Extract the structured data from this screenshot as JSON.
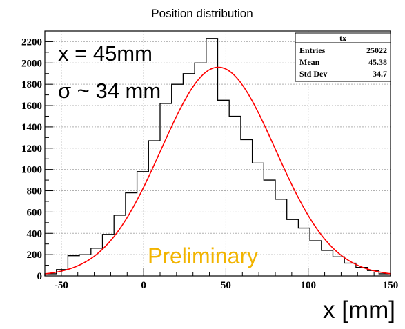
{
  "chart_data": {
    "type": "bar",
    "title": "Position distribution",
    "xlabel": "x [mm]",
    "ylabel": "",
    "xlim": [
      -60,
      150
    ],
    "ylim": [
      0,
      2300
    ],
    "x_ticks": [
      -50,
      0,
      50,
      100,
      150
    ],
    "y_ticks": [
      0,
      200,
      400,
      600,
      800,
      1000,
      1200,
      1400,
      1600,
      1800,
      2000,
      2200
    ],
    "grid": true,
    "bin_edges": [
      -60,
      -53,
      -46,
      -39,
      -32,
      -25,
      -18,
      -11,
      -4,
      3,
      10,
      17,
      24,
      31,
      38,
      45,
      52,
      59,
      66,
      73,
      80,
      87,
      94,
      101,
      108,
      115,
      122,
      129,
      136,
      143,
      150
    ],
    "values": [
      20,
      60,
      190,
      200,
      260,
      390,
      570,
      780,
      980,
      1270,
      1620,
      1800,
      1900,
      2000,
      2230,
      1650,
      1500,
      1280,
      1060,
      900,
      720,
      530,
      450,
      330,
      240,
      180,
      120,
      80,
      50,
      20
    ],
    "fit": {
      "function": "gaus",
      "amplitude": 1960,
      "mean": 45.38,
      "sigma": 34.7
    },
    "annotations": {
      "mean_text": "x = 45mm",
      "sigma_text": "σ ~ 34 mm",
      "preliminary_text": "Preliminary"
    },
    "stats_box": {
      "name": "tx",
      "rows": [
        {
          "label": "Entries",
          "value": "25022"
        },
        {
          "label": "Mean",
          "value": "45.38"
        },
        {
          "label": "Std Dev",
          "value": "34.7"
        }
      ]
    },
    "colors": {
      "histogram": "#000000",
      "fit": "#ff0000",
      "preliminary": "#f2b400",
      "grid": "#b0b0b0"
    }
  }
}
